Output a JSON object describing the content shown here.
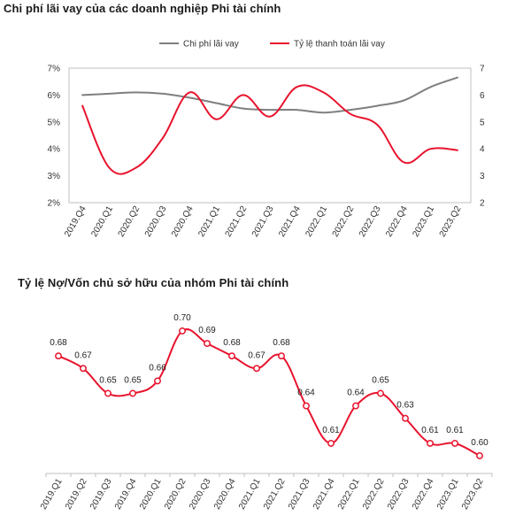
{
  "chart_data": [
    {
      "type": "line",
      "title": "Chi phí lãi vay của các doanh nghiệp Phi tài chính",
      "categories": [
        "2019.Q4",
        "2020.Q1",
        "2020.Q2",
        "2020.Q3",
        "2020.Q4",
        "2021.Q1",
        "2021.Q2",
        "2021.Q3",
        "2021.Q4",
        "2022.Q1",
        "2022.Q2",
        "2022.Q3",
        "2022.Q4",
        "2023.Q1",
        "2023.Q2"
      ],
      "y_left": {
        "ticks": [
          "2%",
          "3%",
          "4%",
          "5%",
          "6%",
          "7%"
        ],
        "ylim": [
          2,
          7
        ]
      },
      "y_right": {
        "ticks": [
          "2",
          "3",
          "4",
          "5",
          "6",
          "7"
        ],
        "ylim": [
          2,
          7
        ]
      },
      "series": [
        {
          "name": "Chi phí lãi vay",
          "axis": "left",
          "color": "#7f7f7f",
          "values": [
            6.0,
            6.05,
            6.1,
            6.05,
            5.9,
            5.7,
            5.5,
            5.45,
            5.45,
            5.35,
            5.45,
            5.6,
            5.8,
            6.3,
            6.65
          ]
        },
        {
          "name": "Tỷ lệ thanh toán lãi vay",
          "axis": "right",
          "color": "#e8132d",
          "values": [
            5.6,
            3.3,
            3.3,
            4.4,
            6.1,
            5.1,
            6.0,
            5.2,
            6.3,
            6.1,
            5.3,
            4.9,
            3.5,
            4.0,
            3.95
          ]
        }
      ],
      "legend": "top",
      "grid": false
    },
    {
      "type": "line",
      "title": "Tỷ lệ Nợ/Vốn chủ sở hữu của nhóm Phi tài chính",
      "categories": [
        "2019.Q1",
        "2019.Q2",
        "2019.Q3",
        "2019.Q4",
        "2020.Q1",
        "2020.Q2",
        "2020.Q3",
        "2020.Q4",
        "2021.Q1",
        "2021.Q2",
        "2021.Q3",
        "2021.Q4",
        "2022.Q1",
        "2022.Q2",
        "2022.Q3",
        "2022.Q4",
        "2023.Q1",
        "2023.Q2"
      ],
      "series": [
        {
          "name": "",
          "color": "#e8132d",
          "values": [
            0.68,
            0.67,
            0.65,
            0.65,
            0.66,
            0.7,
            0.69,
            0.68,
            0.67,
            0.68,
            0.64,
            0.61,
            0.64,
            0.65,
            0.63,
            0.61,
            0.61,
            0.6
          ]
        }
      ],
      "data_labels": [
        "0.68",
        "0.67",
        "0.65",
        "0.65",
        "0.66",
        "0.70",
        "0.69",
        "0.68",
        "0.67",
        "0.68",
        "0.64",
        "0.61",
        "0.64",
        "0.65",
        "0.63",
        "0.61",
        "0.61",
        "0.60"
      ],
      "grid": false
    }
  ]
}
